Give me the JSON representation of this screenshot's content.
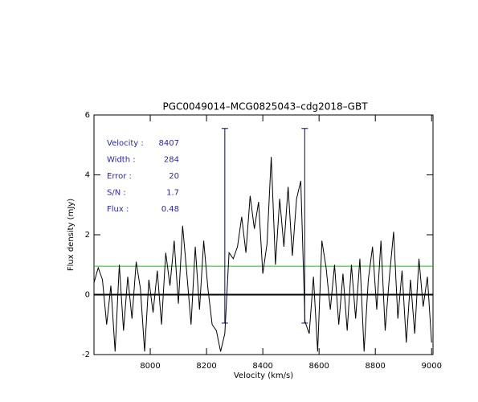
{
  "chart_data": {
    "type": "line",
    "title": "PGC0049014–MCG0825043–cdg2018–GBT",
    "xlabel": "Velocity (km/s)",
    "ylabel": "Flux density (mJy)",
    "xlim": [
      7800,
      9005
    ],
    "ylim": [
      -2,
      6
    ],
    "xticks": [
      8000,
      8200,
      8400,
      8600,
      8800,
      9000
    ],
    "yticks": [
      -2,
      0,
      2,
      4,
      6
    ],
    "color": "#000000",
    "x": [
      7800,
      7815,
      7830,
      7845,
      7860,
      7875,
      7890,
      7905,
      7920,
      7935,
      7950,
      7965,
      7980,
      7995,
      8010,
      8025,
      8040,
      8055,
      8070,
      8085,
      8100,
      8115,
      8130,
      8145,
      8160,
      8175,
      8190,
      8205,
      8220,
      8235,
      8250,
      8265,
      8280,
      8295,
      8310,
      8325,
      8340,
      8355,
      8370,
      8385,
      8400,
      8415,
      8430,
      8445,
      8460,
      8475,
      8490,
      8505,
      8520,
      8535,
      8550,
      8565,
      8580,
      8595,
      8610,
      8625,
      8640,
      8655,
      8670,
      8685,
      8700,
      8715,
      8730,
      8745,
      8760,
      8775,
      8790,
      8805,
      8820,
      8835,
      8850,
      8865,
      8880,
      8895,
      8910,
      8925,
      8940,
      8955,
      8970,
      8985,
      9000
    ],
    "values": [
      0.4,
      0.9,
      0.5,
      -1.0,
      0.3,
      -1.9,
      1.0,
      -1.2,
      0.6,
      -0.8,
      1.1,
      0.2,
      -1.9,
      0.5,
      -0.6,
      0.8,
      -1.0,
      1.4,
      0.3,
      1.8,
      -0.3,
      2.3,
      0.7,
      -1.0,
      1.6,
      -0.5,
      1.8,
      0.2,
      -1.0,
      -1.2,
      -1.9,
      -1.3,
      1.4,
      1.2,
      1.6,
      2.6,
      1.4,
      3.3,
      2.2,
      3.1,
      0.7,
      1.7,
      4.6,
      1.0,
      3.2,
      1.6,
      3.6,
      1.3,
      3.2,
      3.8,
      -0.9,
      -1.3,
      0.6,
      -1.9,
      1.8,
      0.9,
      -0.5,
      1.0,
      -1.0,
      0.7,
      -1.2,
      1.0,
      -0.8,
      1.2,
      -1.9,
      0.5,
      1.6,
      -0.5,
      1.8,
      -1.2,
      0.6,
      2.1,
      -0.8,
      0.8,
      -1.6,
      0.5,
      -1.3,
      1.2,
      -0.4,
      0.6,
      -1.6
    ],
    "window": [
      8265,
      8549
    ],
    "window_ylim": [
      -0.95,
      5.55
    ],
    "window_color": "#000080",
    "reference_line": {
      "value": 0.95,
      "color": "#00cc00"
    },
    "annotation_color": "#2a2a9a",
    "annotations": [
      {
        "label": "Velocity :",
        "value": 8407
      },
      {
        "label": "Width :",
        "value": 284
      },
      {
        "label": "Error :",
        "value": 20
      },
      {
        "label": "S/N :",
        "value": 1.7
      },
      {
        "label": "Flux :",
        "value": 0.48
      }
    ]
  }
}
